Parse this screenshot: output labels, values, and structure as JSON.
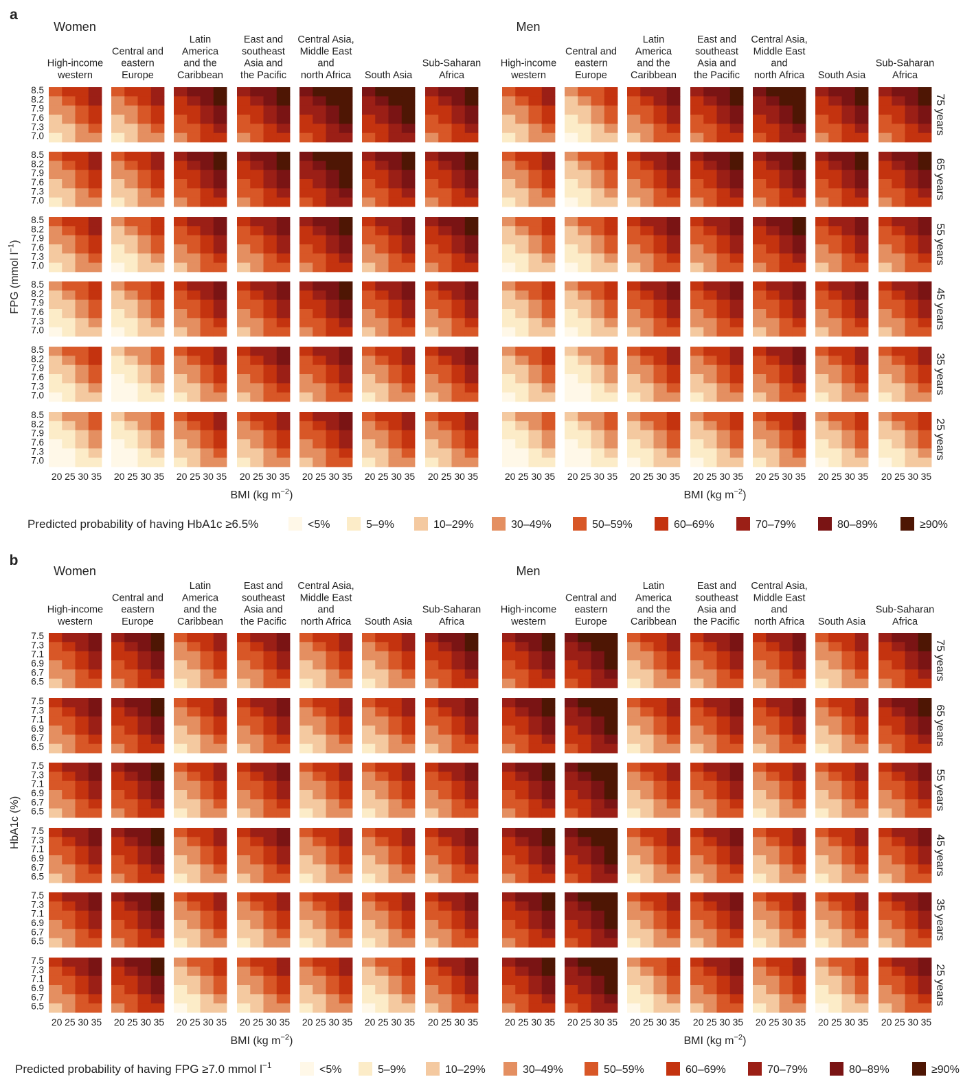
{
  "colors": {
    "text": "#222222",
    "bins": [
      "#fff8e8",
      "#fcecc8",
      "#f4c9a0",
      "#e48f61",
      "#d85727",
      "#c4330f",
      "#9b1f16",
      "#7a1414",
      "#4e1604"
    ]
  },
  "legend_bins": [
    "<5%",
    "5–9%",
    "10–29%",
    "30–49%",
    "50–59%",
    "60–69%",
    "70–79%",
    "80–89%",
    "≥90%"
  ],
  "regions": [
    [
      "High-income",
      "western"
    ],
    [
      "Central and",
      "eastern",
      "Europe"
    ],
    [
      "Latin",
      "America",
      "and the",
      "Caribbean"
    ],
    [
      "East and",
      "southeast",
      "Asia and",
      "the Pacific"
    ],
    [
      "Central Asia,",
      "Middle East",
      "and",
      "north Africa"
    ],
    [
      "South Asia"
    ],
    [
      "Sub-Saharan",
      "Africa"
    ]
  ],
  "sex_labels": [
    "Women",
    "Men"
  ],
  "age_labels": [
    "75 years",
    "65 years",
    "55 years",
    "45 years",
    "35 years",
    "25 years"
  ],
  "bmi_ticks": [
    "20",
    "25",
    "30",
    "35"
  ],
  "xlabel": "BMI (kg m",
  "xlabel_sup": "−2",
  "xlabel_end": ")",
  "panels": [
    {
      "letter": "a",
      "ylabel": "FPG (mmol l",
      "ylabel_sup": "−1",
      "ylabel_end": ")",
      "y_ticks": [
        "8.5",
        "8.2",
        "7.9",
        "7.6",
        "7.3",
        "7.0"
      ],
      "legend_title": "Predicted probability of having HbA1c ≥6.5%",
      "legend_title_sup": ""
    },
    {
      "letter": "b",
      "ylabel": "HbA1c (%)",
      "ylabel_sup": "",
      "ylabel_end": "",
      "y_ticks": [
        "7.5",
        "7.3",
        "7.1",
        "6.9",
        "6.7",
        "6.5"
      ],
      "legend_title": "Predicted probability of having FPG ≥7.0 mmol l",
      "legend_title_sup": "−1"
    }
  ],
  "chart_data": [
    {
      "type": "heatmap",
      "panel": "a",
      "title": "",
      "xlabel": "BMI (kg m−2)",
      "ylabel": "FPG (mmol l−1)",
      "x_ticks": [
        20,
        25,
        30,
        35
      ],
      "y_ticks": [
        8.5,
        8.2,
        7.9,
        7.6,
        7.3,
        7.0
      ],
      "cell_value_scale": "bin index 0–8 matching legend_bins",
      "cells_layout": "values[sex][age_row][region] = 6x4 grid (rows FPG high to low, cols BMI low to high)",
      "base_level": {
        "Women": [
          [
            2,
            2,
            4,
            4,
            5,
            5,
            4
          ],
          [
            2,
            2,
            4,
            4,
            5,
            4,
            4
          ],
          [
            2,
            1,
            3,
            3,
            4,
            3,
            4
          ],
          [
            1,
            1,
            3,
            3,
            4,
            3,
            3
          ],
          [
            1,
            0,
            2,
            3,
            3,
            2,
            3
          ],
          [
            0,
            0,
            2,
            2,
            3,
            2,
            2
          ]
        ],
        "Men": [
          [
            2,
            1,
            3,
            4,
            5,
            4,
            4
          ],
          [
            2,
            1,
            3,
            4,
            4,
            4,
            4
          ],
          [
            1,
            1,
            3,
            3,
            4,
            3,
            3
          ],
          [
            1,
            1,
            3,
            3,
            3,
            3,
            3
          ],
          [
            1,
            0,
            2,
            2,
            3,
            2,
            2
          ],
          [
            0,
            0,
            1,
            1,
            2,
            1,
            1
          ]
        ]
      }
    },
    {
      "type": "heatmap",
      "panel": "b",
      "title": "",
      "xlabel": "BMI (kg m−2)",
      "ylabel": "HbA1c (%)",
      "x_ticks": [
        20,
        25,
        30,
        35
      ],
      "y_ticks": [
        7.5,
        7.3,
        7.1,
        6.9,
        6.7,
        6.5
      ],
      "cell_value_scale": "bin index 0–8 matching legend_bins",
      "cells_layout": "values[sex][age_row][region] = 6x4 grid (rows HbA1c high to low, cols BMI low to high)",
      "base_level": {
        "Women": [
          [
            3,
            4,
            2,
            3,
            2,
            2,
            4
          ],
          [
            3,
            4,
            2,
            3,
            2,
            2,
            3
          ],
          [
            3,
            4,
            2,
            3,
            2,
            2,
            3
          ],
          [
            3,
            4,
            2,
            3,
            2,
            2,
            3
          ],
          [
            3,
            4,
            2,
            2,
            2,
            2,
            3
          ],
          [
            3,
            4,
            1,
            2,
            2,
            1,
            3
          ]
        ],
        "Men": [
          [
            4,
            5,
            2,
            3,
            3,
            2,
            4
          ],
          [
            4,
            5,
            2,
            3,
            3,
            2,
            4
          ],
          [
            4,
            5,
            2,
            3,
            2,
            2,
            3
          ],
          [
            4,
            5,
            2,
            3,
            2,
            2,
            3
          ],
          [
            4,
            5,
            2,
            3,
            2,
            2,
            3
          ],
          [
            4,
            5,
            1,
            3,
            2,
            1,
            3
          ]
        ]
      }
    }
  ]
}
